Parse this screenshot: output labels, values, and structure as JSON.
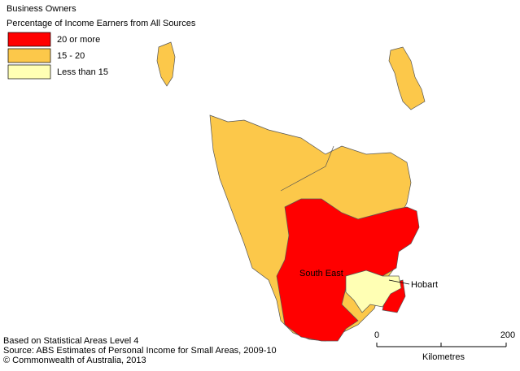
{
  "header": {
    "title": "Business Owners",
    "subtitle": "Percentage of Income Earners from All Sources"
  },
  "legend": [
    {
      "label": "20 or more",
      "color": "#ff0000"
    },
    {
      "label": "15 - 20",
      "color": "#fcc84a"
    },
    {
      "label": "Less than 15",
      "color": "#ffffb4"
    }
  ],
  "labels": {
    "south_east": "South East",
    "hobart": "Hobart"
  },
  "scale": {
    "start": "0",
    "end": "200",
    "unit": "Kilometres"
  },
  "footer": [
    "Based on Statistical Areas Level 4",
    "Source: ABS Estimates of Personal Income for Small Areas, 2009-10",
    "© Commonwealth of Australia, 2013"
  ]
}
